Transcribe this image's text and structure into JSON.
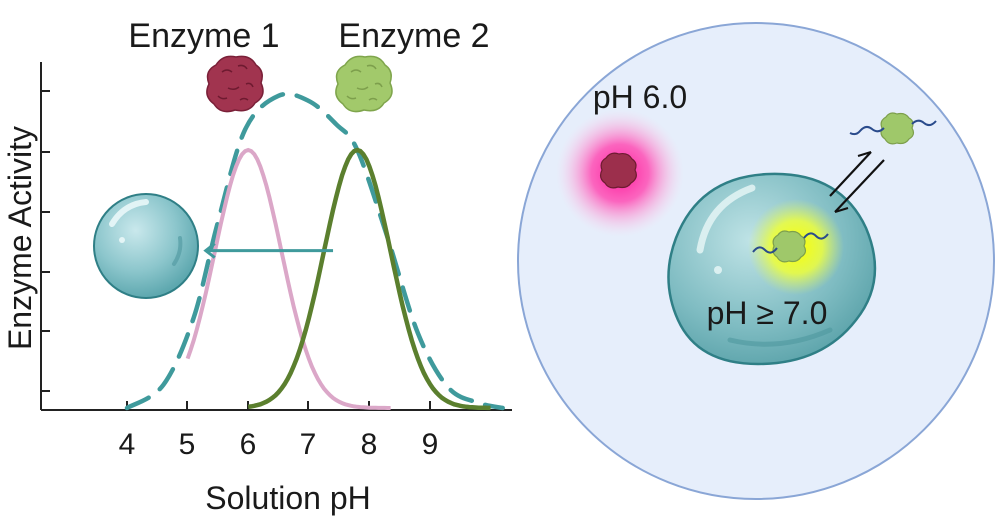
{
  "plot": {
    "y_label": "Enzyme Activity",
    "x_label": "Solution pH",
    "x_ticks": [
      "4",
      "5",
      "6",
      "7",
      "8",
      "9"
    ],
    "enzyme1_label": "Enzyme 1",
    "enzyme2_label": "Enzyme 2"
  },
  "chart_data": {
    "type": "line",
    "xlabel": "Solution pH",
    "ylabel": "Enzyme Activity",
    "x_ticks": [
      4,
      5,
      6,
      7,
      8,
      9
    ],
    "y_tick_count": 6,
    "xlim": [
      2.7,
      10.4
    ],
    "ylim": [
      0,
      1.3
    ],
    "series": [
      {
        "name": "Enzyme 1",
        "color": "#dba7c8",
        "style": "solid",
        "peak_x": 6.0,
        "peak_y": 1.0,
        "sigma": 0.55,
        "x_range": [
          5.0,
          8.35
        ]
      },
      {
        "name": "Enzyme 2",
        "color": "#5b7f2e",
        "style": "solid",
        "peak_x": 7.8,
        "peak_y": 1.0,
        "sigma": 0.55,
        "x_range": [
          6.0,
          10.0
        ]
      },
      {
        "name": "",
        "color": "#3f9a9c",
        "style": "dashed",
        "note_values": "broad envelope",
        "x": [
          4.0,
          4.6,
          5.1,
          5.5,
          5.95,
          6.5,
          7.0,
          7.45,
          7.8,
          8.3,
          8.8,
          9.3,
          9.8,
          10.2
        ],
        "y": [
          0.0,
          0.09,
          0.35,
          0.72,
          1.08,
          1.21,
          1.19,
          1.1,
          1.0,
          0.66,
          0.29,
          0.08,
          0.02,
          0.0
        ]
      }
    ],
    "arrow": {
      "from_x": 7.4,
      "to_x": 5.3,
      "y": 0.61,
      "color": "#3f9a9c"
    }
  },
  "right": {
    "ph_outer": "pH 6.0",
    "ph_inner": "pH ≥ 7.0"
  },
  "colors": {
    "enzyme1": "#9c2f4c",
    "enzyme2": "#9fc86a",
    "teal": "#3f9a9c",
    "cell_fill": "#e6eefb",
    "cell_stroke": "#8aa6d6",
    "magenta": "#ff2fa8",
    "yellow": "#f2ff1a"
  }
}
